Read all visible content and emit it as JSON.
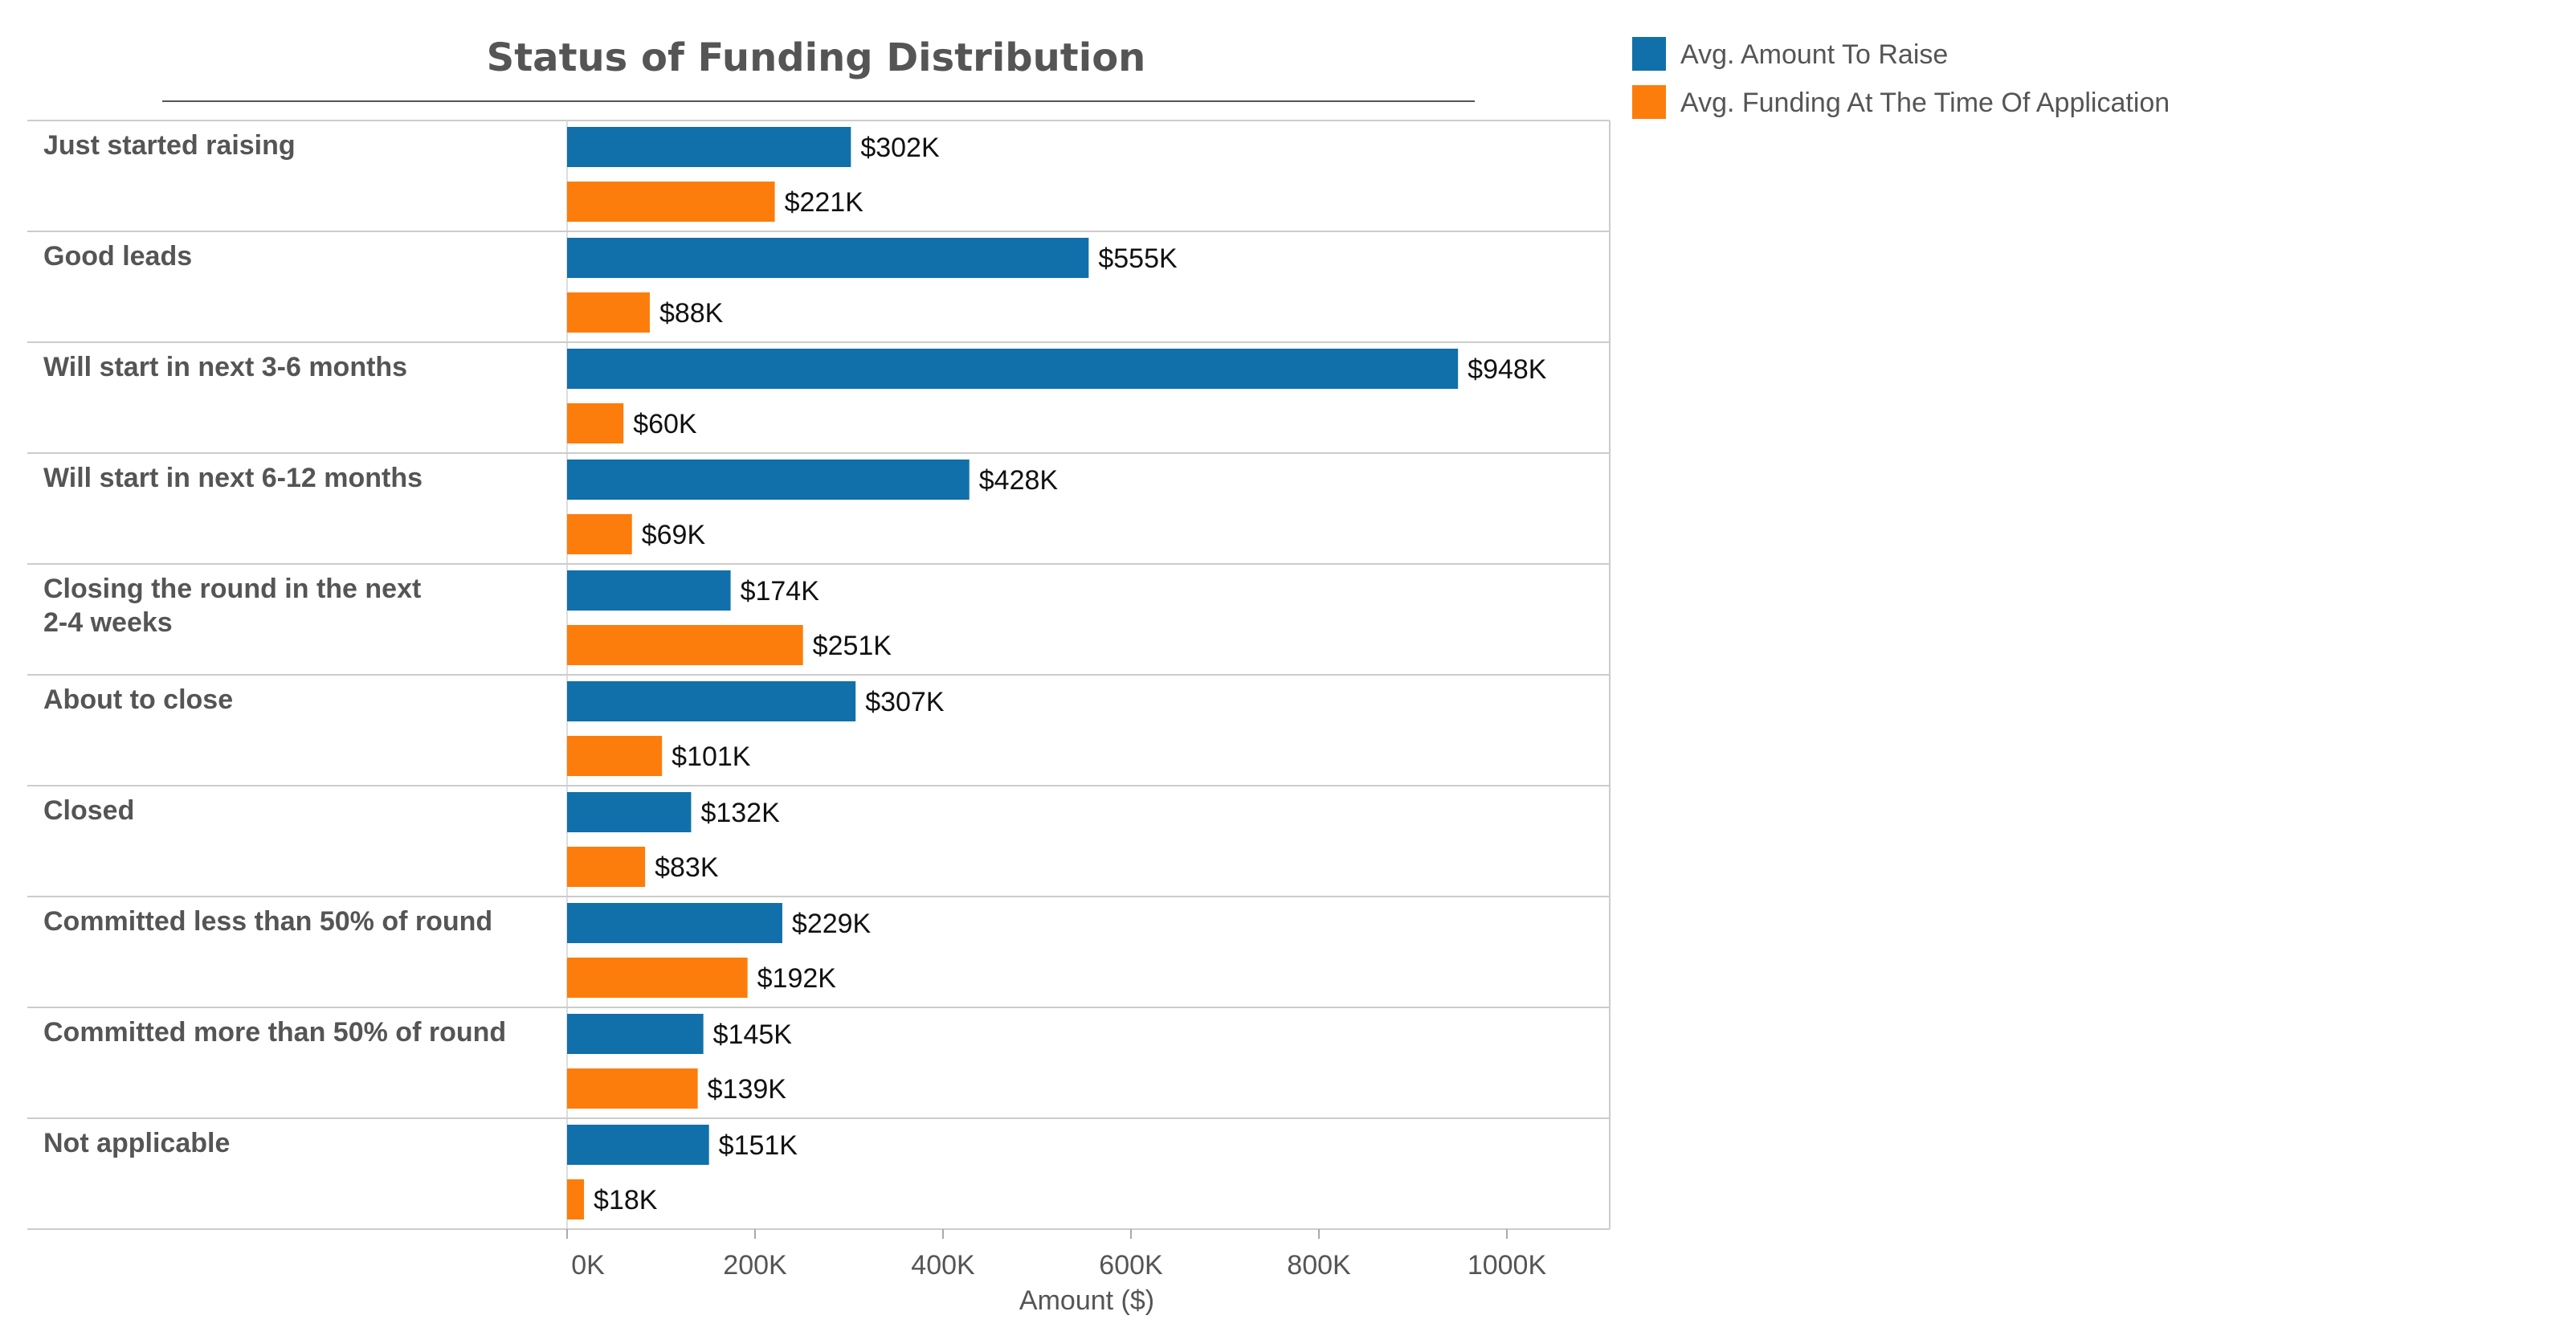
{
  "chart_data": {
    "type": "bar",
    "orientation": "horizontal",
    "title": "Status of Funding Distribution",
    "xlabel": "Amount ($)",
    "ylabel": "",
    "xlim": [
      0,
      1100000
    ],
    "x_ticks": [
      0,
      200000,
      400000,
      600000,
      800000,
      1000000
    ],
    "x_tick_labels": [
      "0K",
      "200K",
      "400K",
      "600K",
      "800K",
      "1000K"
    ],
    "grid": false,
    "legend_position": "top-right",
    "categories": [
      "Just started raising",
      "Good leads",
      "Will start in next 3-6 months",
      "Will start in next 6-12 months",
      "Closing the round in the next 2-4 weeks",
      "About to close",
      "Closed",
      "Committed less than 50% of round",
      "Committed more than 50% of round",
      "Not applicable"
    ],
    "series": [
      {
        "name": "Avg. Amount To Raise",
        "color": "#1170aa",
        "values": [
          302000,
          555000,
          948000,
          428000,
          174000,
          307000,
          132000,
          229000,
          145000,
          151000
        ],
        "labels": [
          "$302K",
          "$555K",
          "$948K",
          "$428K",
          "$174K",
          "$307K",
          "$132K",
          "$229K",
          "$145K",
          "$151K"
        ]
      },
      {
        "name": "Avg. Funding At The Time Of Application",
        "color": "#fc7d0b",
        "values": [
          221000,
          88000,
          60000,
          69000,
          251000,
          101000,
          83000,
          192000,
          139000,
          18000
        ],
        "labels": [
          "$221K",
          "$88K",
          "$60K",
          "$69K",
          "$251K",
          "$101K",
          "$83K",
          "$192K",
          "$139K",
          "$18K"
        ]
      }
    ]
  }
}
